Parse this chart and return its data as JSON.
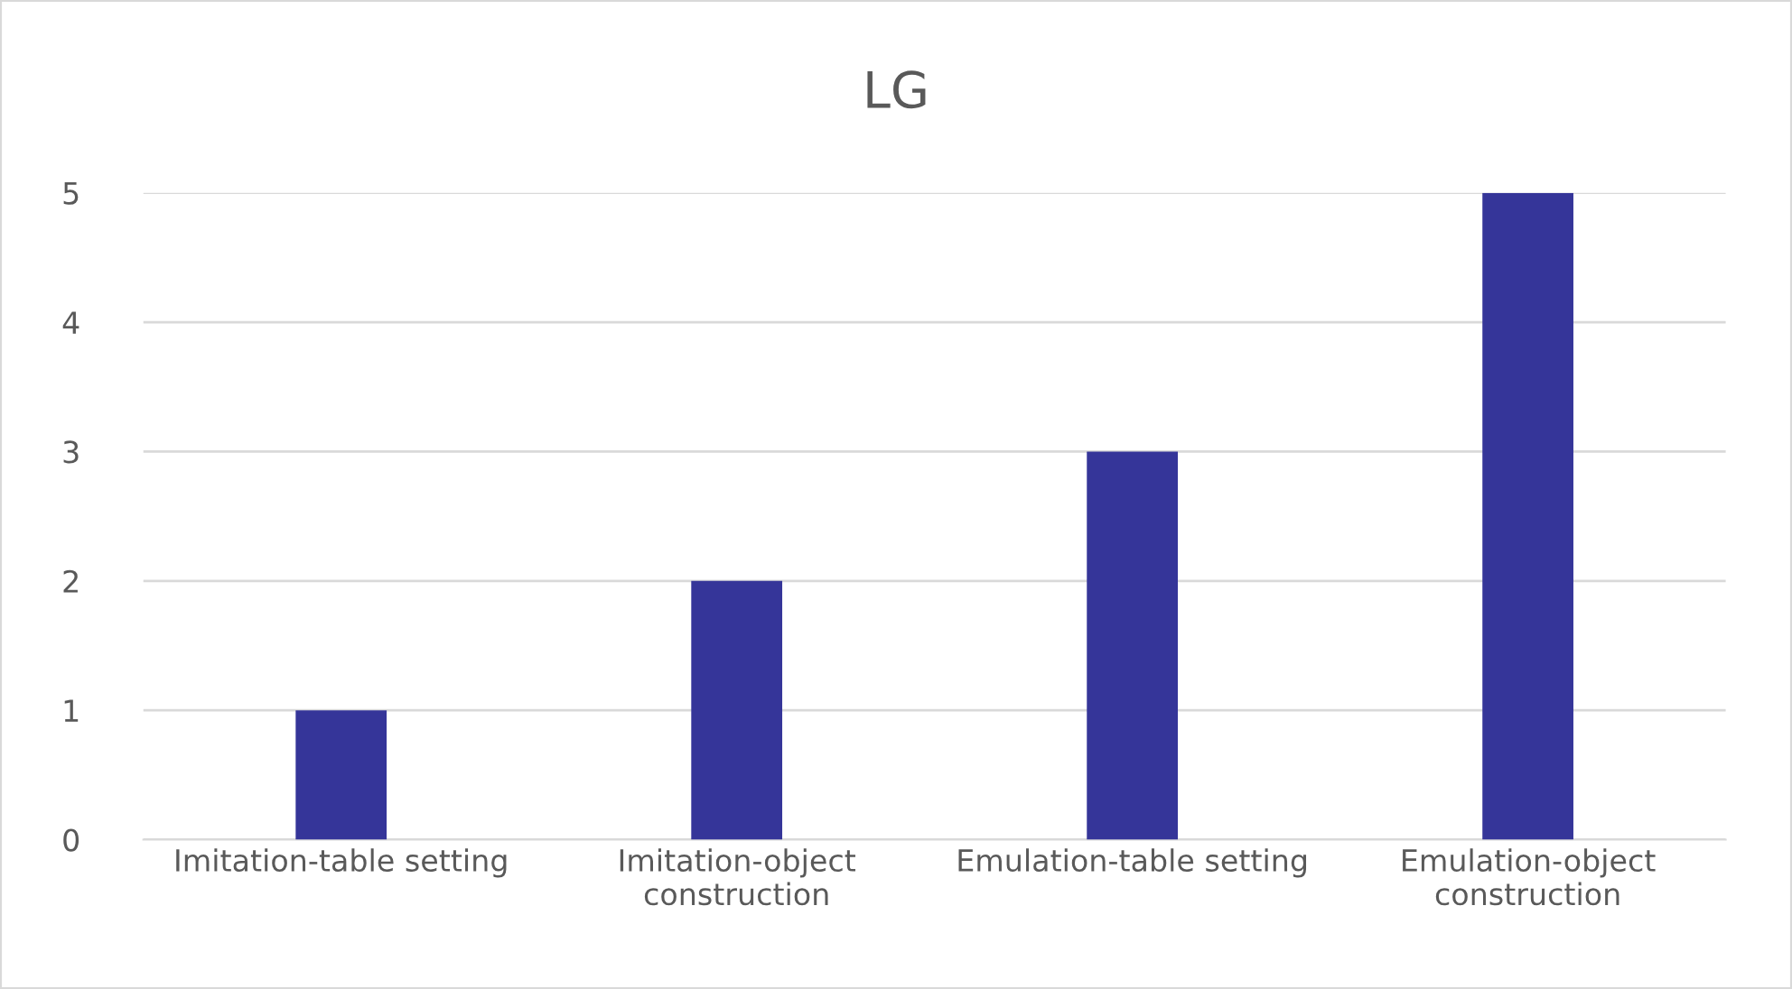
{
  "chart_data": {
    "type": "bar",
    "title": "LG",
    "categories": [
      "Imitation-table setting",
      "Imitation-object construction",
      "Emulation-table setting",
      "Emulation-object construction"
    ],
    "values": [
      1,
      2,
      3,
      5
    ],
    "color": "#353599",
    "ylim": [
      0,
      5
    ],
    "yticks": [
      0,
      1,
      2,
      3,
      4,
      5
    ],
    "grid": "y"
  }
}
